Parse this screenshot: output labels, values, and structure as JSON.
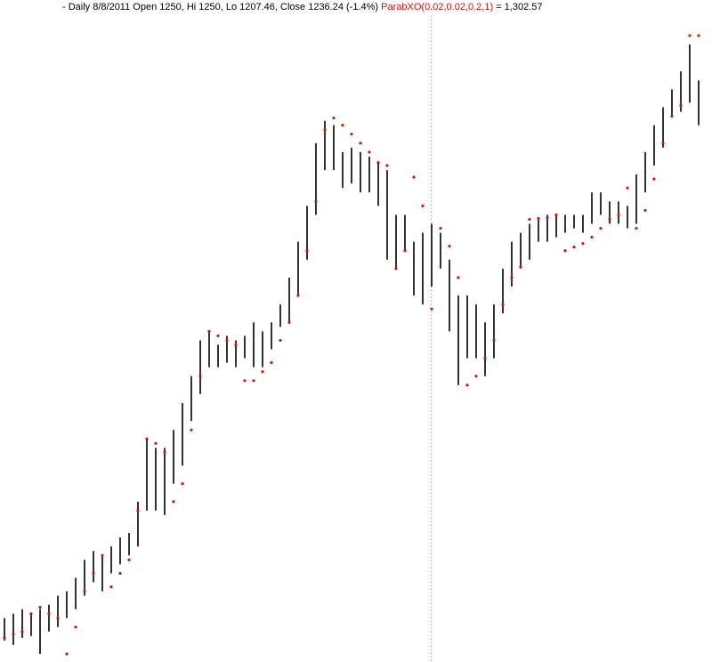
{
  "chart_data": {
    "type": "ohlc",
    "header": "- Daily 8/8/2011 Open 1250, Hi 1250, Lo 1207.46, Close 1236.24 (-1.4%)",
    "indicator_label": "ParabXO(0.02,0.02,0.2,1)",
    "indicator_value": "= 1,302.57",
    "bar_color": "#000000",
    "sar_color": "#d01010",
    "high": [
      846,
      851,
      856,
      851,
      856,
      861,
      871,
      876,
      891,
      911,
      921,
      916,
      926,
      936,
      941,
      976,
      1046,
      1036,
      1036,
      1056,
      1086,
      1116,
      1156,
      1166,
      1151,
      1161,
      1156,
      1161,
      1176,
      1166,
      1176,
      1196,
      1226,
      1266,
      1306,
      1376,
      1401,
      1396,
      1366,
      1371,
      1366,
      1361,
      1356,
      1346,
      1296,
      1296,
      1266,
      1276,
      1286,
      1276,
      1246,
      1206,
      1206,
      1196,
      1176,
      1196,
      1236,
      1266,
      1276,
      1286,
      1291,
      1296,
      1296,
      1296,
      1296,
      1296,
      1321,
      1321,
      1311,
      1311,
      1306,
      1341,
      1366,
      1396,
      1416,
      1436,
      1456,
      1486,
      1446
    ],
    "low": [
      821,
      816,
      824,
      826,
      806,
      831,
      836,
      846,
      856,
      871,
      886,
      876,
      896,
      906,
      916,
      926,
      966,
      966,
      961,
      996,
      1016,
      1066,
      1096,
      1126,
      1126,
      1131,
      1126,
      1136,
      1126,
      1126,
      1146,
      1171,
      1176,
      1206,
      1246,
      1296,
      1346,
      1346,
      1326,
      1331,
      1321,
      1321,
      1306,
      1246,
      1236,
      1256,
      1206,
      1196,
      1216,
      1236,
      1166,
      1106,
      1136,
      1136,
      1116,
      1136,
      1186,
      1216,
      1236,
      1246,
      1266,
      1266,
      1271,
      1276,
      1281,
      1276,
      1286,
      1296,
      1286,
      1286,
      1281,
      1286,
      1321,
      1351,
      1371,
      1406,
      1411,
      1421,
      1396
    ],
    "sar": [
      824,
      828,
      831,
      851,
      858,
      851,
      846,
      806,
      836,
      876,
      896,
      916,
      881,
      896,
      911,
      966,
      1046,
      1041,
      1031,
      976,
      996,
      1056,
      1116,
      1166,
      1161,
      1156,
      1151,
      1111,
      1111,
      1121,
      1131,
      1156,
      1176,
      1206,
      1256,
      1311,
      1391,
      1404,
      1396,
      1386,
      1376,
      1366,
      1354,
      1351,
      1236,
      1256,
      1338,
      1306,
      1191,
      1281,
      1261,
      1226,
      1106,
      1116,
      1136,
      1156,
      1196,
      1226,
      1238,
      1291,
      1292,
      1293,
      1296,
      1256,
      1260,
      1264,
      1271,
      1281,
      1291,
      1296,
      1326,
      1281,
      1301,
      1336,
      1376,
      1406,
      1418,
      1496,
      1496
    ]
  }
}
